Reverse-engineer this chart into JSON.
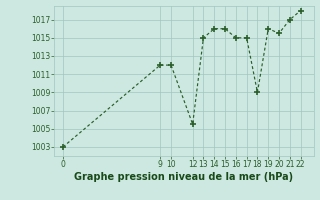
{
  "title": "Graphe pression niveau de la mer (hPa)",
  "x_data": [
    0,
    9,
    10,
    12,
    13,
    14,
    15,
    16,
    17,
    18,
    19,
    20,
    21,
    22
  ],
  "y_data": [
    1003,
    1012,
    1012,
    1005.5,
    1015,
    1016,
    1016,
    1015,
    1015,
    1009,
    1016,
    1015.5,
    1017,
    1018
  ],
  "x_ticks": [
    0,
    9,
    10,
    12,
    13,
    14,
    15,
    16,
    17,
    18,
    19,
    20,
    21,
    22
  ],
  "y_ticks": [
    1003,
    1005,
    1007,
    1009,
    1011,
    1013,
    1015,
    1017
  ],
  "ylim": [
    1002.0,
    1018.5
  ],
  "xlim": [
    -0.8,
    23.2
  ],
  "line_color": "#2a5e2a",
  "marker_color": "#2a5e2a",
  "bg_color": "#cce8e0",
  "grid_color": "#a0c8bf",
  "title_color": "#1a4a1a",
  "title_fontsize": 7.0,
  "tick_fontsize": 5.5
}
